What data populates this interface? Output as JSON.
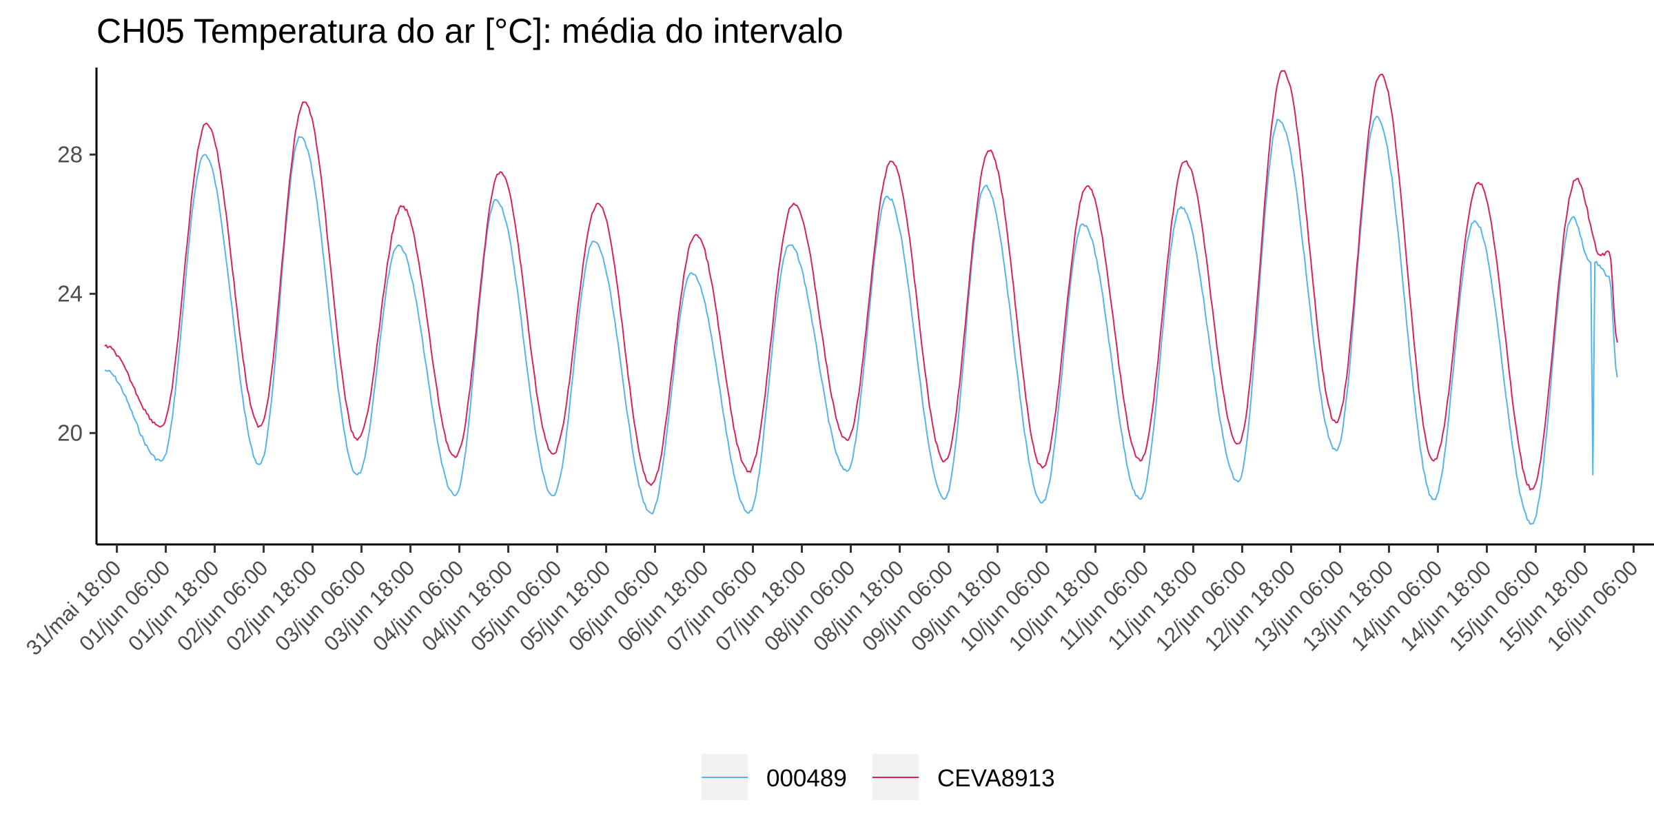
{
  "chart_data": {
    "type": "line",
    "title": "CH05 Temperatura do ar [°C]: média do intervalo",
    "xlabel": "",
    "ylabel": "",
    "yticks": [
      20,
      24,
      28
    ],
    "ylim": [
      16.8,
      30.5
    ],
    "xlim": [
      "2023-05-31T13:00",
      "2023-06-16T11:00"
    ],
    "xticks": [
      {
        "t": "2023-05-31T18:00",
        "label": "31/mai 18:00"
      },
      {
        "t": "2023-06-01T06:00",
        "label": "01/jun 06:00"
      },
      {
        "t": "2023-06-01T18:00",
        "label": "01/jun 18:00"
      },
      {
        "t": "2023-06-02T06:00",
        "label": "02/jun 06:00"
      },
      {
        "t": "2023-06-02T18:00",
        "label": "02/jun 18:00"
      },
      {
        "t": "2023-06-03T06:00",
        "label": "03/jun 06:00"
      },
      {
        "t": "2023-06-03T18:00",
        "label": "03/jun 18:00"
      },
      {
        "t": "2023-06-04T06:00",
        "label": "04/jun 06:00"
      },
      {
        "t": "2023-06-04T18:00",
        "label": "04/jun 18:00"
      },
      {
        "t": "2023-06-05T06:00",
        "label": "05/jun 06:00"
      },
      {
        "t": "2023-06-05T18:00",
        "label": "05/jun 18:00"
      },
      {
        "t": "2023-06-06T06:00",
        "label": "06/jun 06:00"
      },
      {
        "t": "2023-06-06T18:00",
        "label": "06/jun 18:00"
      },
      {
        "t": "2023-06-07T06:00",
        "label": "07/jun 06:00"
      },
      {
        "t": "2023-06-07T18:00",
        "label": "07/jun 18:00"
      },
      {
        "t": "2023-06-08T06:00",
        "label": "08/jun 06:00"
      },
      {
        "t": "2023-06-08T18:00",
        "label": "08/jun 18:00"
      },
      {
        "t": "2023-06-09T06:00",
        "label": "09/jun 06:00"
      },
      {
        "t": "2023-06-09T18:00",
        "label": "09/jun 18:00"
      },
      {
        "t": "2023-06-10T06:00",
        "label": "10/jun 06:00"
      },
      {
        "t": "2023-06-10T18:00",
        "label": "10/jun 18:00"
      },
      {
        "t": "2023-06-11T06:00",
        "label": "11/jun 06:00"
      },
      {
        "t": "2023-06-11T18:00",
        "label": "11/jun 18:00"
      },
      {
        "t": "2023-06-12T06:00",
        "label": "12/jun 06:00"
      },
      {
        "t": "2023-06-12T18:00",
        "label": "12/jun 18:00"
      },
      {
        "t": "2023-06-13T06:00",
        "label": "13/jun 06:00"
      },
      {
        "t": "2023-06-13T18:00",
        "label": "13/jun 18:00"
      },
      {
        "t": "2023-06-14T06:00",
        "label": "14/jun 06:00"
      },
      {
        "t": "2023-06-14T18:00",
        "label": "14/jun 18:00"
      },
      {
        "t": "2023-06-15T06:00",
        "label": "15/jun 06:00"
      },
      {
        "t": "2023-06-15T18:00",
        "label": "15/jun 18:00"
      },
      {
        "t": "2023-06-16T06:00",
        "label": "16/jun 06:00"
      }
    ],
    "grid": false,
    "legend": "bottom",
    "series": [
      {
        "name": "000489",
        "color": "#56b4e9",
        "x": [
          "2023-05-31T15:00",
          "2023-06-01T05:00",
          "2023-06-01T15:30",
          "2023-06-02T05:00",
          "2023-06-02T15:00",
          "2023-06-03T05:00",
          "2023-06-03T15:00",
          "2023-06-04T05:00",
          "2023-06-04T15:00",
          "2023-06-05T05:00",
          "2023-06-05T15:00",
          "2023-06-06T05:00",
          "2023-06-06T15:00",
          "2023-06-07T05:00",
          "2023-06-07T15:00",
          "2023-06-08T05:00",
          "2023-06-08T15:00",
          "2023-06-09T05:00",
          "2023-06-09T15:00",
          "2023-06-10T05:00",
          "2023-06-10T15:00",
          "2023-06-11T05:00",
          "2023-06-11T15:00",
          "2023-06-12T05:00",
          "2023-06-12T15:00",
          "2023-06-13T05:00",
          "2023-06-13T15:00",
          "2023-06-14T05:00",
          "2023-06-14T15:00",
          "2023-06-15T05:00",
          "2023-06-15T15:00",
          "2023-06-15T19:30",
          "2023-06-15T20:00",
          "2023-06-15T20:30",
          "2023-06-16T00:00",
          "2023-06-16T02:00"
        ],
        "y": [
          21.8,
          19.2,
          28.0,
          19.1,
          28.5,
          18.8,
          25.4,
          18.2,
          26.7,
          18.2,
          25.5,
          17.7,
          24.6,
          17.7,
          25.4,
          18.9,
          26.8,
          18.1,
          27.1,
          18.0,
          26.0,
          18.1,
          26.5,
          18.6,
          29.0,
          19.5,
          29.1,
          18.1,
          26.1,
          17.4,
          26.2,
          24.9,
          18.8,
          24.9,
          24.5,
          21.6
        ]
      },
      {
        "name": "CEVA8913",
        "color": "#d6225a",
        "x": [
          "2023-05-31T15:00",
          "2023-06-01T05:00",
          "2023-06-01T16:00",
          "2023-06-02T05:00",
          "2023-06-02T16:00",
          "2023-06-03T05:00",
          "2023-06-03T16:00",
          "2023-06-04T05:00",
          "2023-06-04T16:00",
          "2023-06-05T05:00",
          "2023-06-05T16:00",
          "2023-06-06T05:00",
          "2023-06-06T16:00",
          "2023-06-07T05:00",
          "2023-06-07T16:00",
          "2023-06-08T05:00",
          "2023-06-08T16:00",
          "2023-06-09T05:00",
          "2023-06-09T16:00",
          "2023-06-10T05:00",
          "2023-06-10T16:00",
          "2023-06-11T05:00",
          "2023-06-11T16:00",
          "2023-06-12T05:00",
          "2023-06-12T16:00",
          "2023-06-13T05:00",
          "2023-06-13T16:00",
          "2023-06-14T05:00",
          "2023-06-14T16:00",
          "2023-06-15T05:00",
          "2023-06-15T16:00",
          "2023-06-15T22:00",
          "2023-06-16T00:00",
          "2023-06-16T02:00"
        ],
        "y": [
          22.5,
          20.2,
          28.9,
          20.2,
          29.5,
          19.8,
          26.5,
          19.3,
          27.5,
          19.4,
          26.6,
          18.5,
          25.7,
          18.9,
          26.6,
          19.8,
          27.8,
          19.2,
          28.1,
          19.0,
          27.1,
          19.2,
          27.8,
          19.7,
          30.4,
          20.3,
          30.3,
          19.2,
          27.2,
          18.4,
          27.3,
          25.1,
          25.2,
          22.6
        ]
      }
    ]
  }
}
